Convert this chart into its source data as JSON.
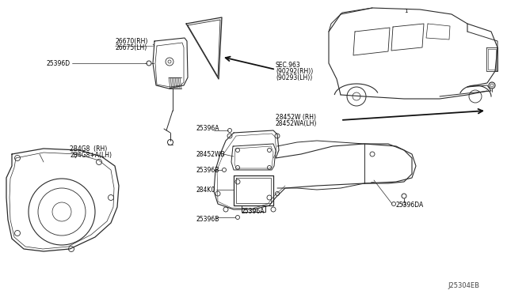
{
  "bg_color": "#ffffff",
  "diagram_ref": "J25304EB",
  "line_color": "#2a2a2a",
  "text_color": "#000000",
  "fs": 5.5,
  "fig_w": 6.4,
  "fig_h": 3.72,
  "dpi": 100,
  "labels": {
    "l1a": "26670(RH)",
    "l1b": "26675(LH)",
    "l2": "25396D",
    "l3a": "SEC.963",
    "l3b": "(90292(RH))",
    "l3c": "(90293(LH))",
    "l4a": "28452W (RH)",
    "l4b": "28452WA(LH)",
    "l5": "25396A",
    "l6": "28452WB",
    "l7": "25396B",
    "l8": "284K0",
    "l9": "25396A",
    "l10": "25396B",
    "l11a": "25396DA",
    "l12a": "2B4G8  (RH)",
    "l12b": "2B4G8+A(LH)"
  }
}
